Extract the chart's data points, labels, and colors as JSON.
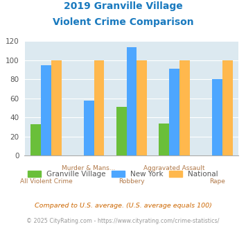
{
  "title_line1": "2019 Granville Village",
  "title_line2": "Violent Crime Comparison",
  "title_color": "#1a7abf",
  "categories": [
    "All Violent Crime",
    "Murder & Mans...",
    "Robbery",
    "Aggravated Assault",
    "Rape"
  ],
  "label_row1": [
    "",
    "Murder & Mans...",
    "",
    "Aggravated Assault",
    ""
  ],
  "label_row2": [
    "All Violent Crime",
    "",
    "Robbery",
    "",
    "Rape"
  ],
  "granville": [
    33,
    0,
    51,
    34,
    0
  ],
  "newyork": [
    95,
    58,
    114,
    91,
    80
  ],
  "national": [
    100,
    100,
    100,
    100,
    100
  ],
  "granville_color": "#6abf3a",
  "newyork_color": "#4da6ff",
  "national_color": "#ffb84d",
  "background_color": "#dce9f0",
  "ylim": [
    0,
    120
  ],
  "yticks": [
    0,
    20,
    40,
    60,
    80,
    100,
    120
  ],
  "legend_labels": [
    "Granville Village",
    "New York",
    "National"
  ],
  "footnote1": "Compared to U.S. average. (U.S. average equals 100)",
  "footnote2": "© 2025 CityRating.com - https://www.cityrating.com/crime-statistics/",
  "footnote1_color": "#cc6600",
  "footnote2_color": "#999999",
  "xlabel_color": "#b07848"
}
